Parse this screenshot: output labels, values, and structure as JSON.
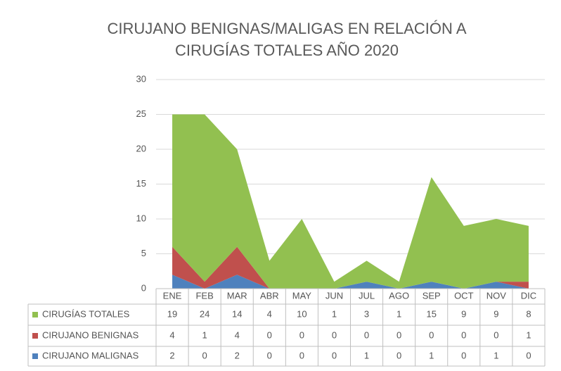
{
  "chart_data": {
    "type": "stacked_area",
    "title": [
      "CIRUJANO BENIGNAS/MALIGAS EN RELACIÓN A",
      "CIRUGÍAS TOTALES AÑO 2020"
    ],
    "categories": [
      "ENE",
      "FEB",
      "MAR",
      "ABR",
      "MAY",
      "JUN",
      "JUL",
      "AGO",
      "SEP",
      "OCT",
      "NOV",
      "DIC"
    ],
    "series": [
      {
        "name": "CIRUGÍAS TOTALES",
        "color": "#92c050",
        "values": [
          19,
          24,
          14,
          4,
          10,
          1,
          3,
          1,
          15,
          9,
          9,
          8
        ]
      },
      {
        "name": "CIRUJANO BENIGNAS",
        "color": "#c0504d",
        "values": [
          4,
          1,
          4,
          0,
          0,
          0,
          0,
          0,
          0,
          0,
          0,
          1
        ]
      },
      {
        "name": "CIRUJANO MALIGNAS",
        "color": "#4f81bd",
        "values": [
          2,
          0,
          2,
          0,
          0,
          0,
          1,
          0,
          1,
          0,
          1,
          0
        ]
      }
    ],
    "ylim": [
      0,
      30
    ],
    "yticks": [
      0,
      5,
      10,
      15,
      20,
      25,
      30
    ],
    "grid": true
  }
}
